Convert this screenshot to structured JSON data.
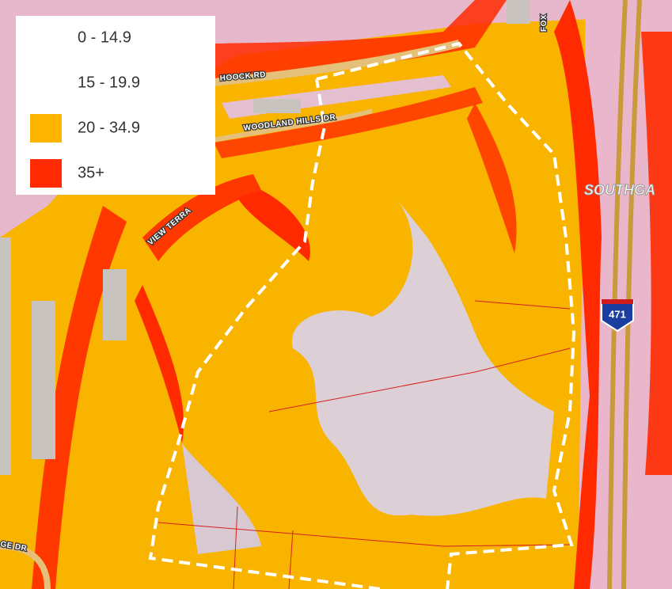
{
  "legend": {
    "items": [
      {
        "label": "0 - 14.9",
        "color": "#ffffff"
      },
      {
        "label": "15 - 19.9",
        "color": "#ffffff"
      },
      {
        "label": "20 - 34.9",
        "color": "#ffb400"
      },
      {
        "label": "35+",
        "color": "#ff2a00"
      }
    ]
  },
  "map_labels": {
    "roads": [
      "HOOCK RD",
      "WOODLAND HILLS DR",
      "VIEW TERRA",
      "FOX",
      "GE DR"
    ],
    "area": "SOUTHGA",
    "highway_shield": "471"
  }
}
